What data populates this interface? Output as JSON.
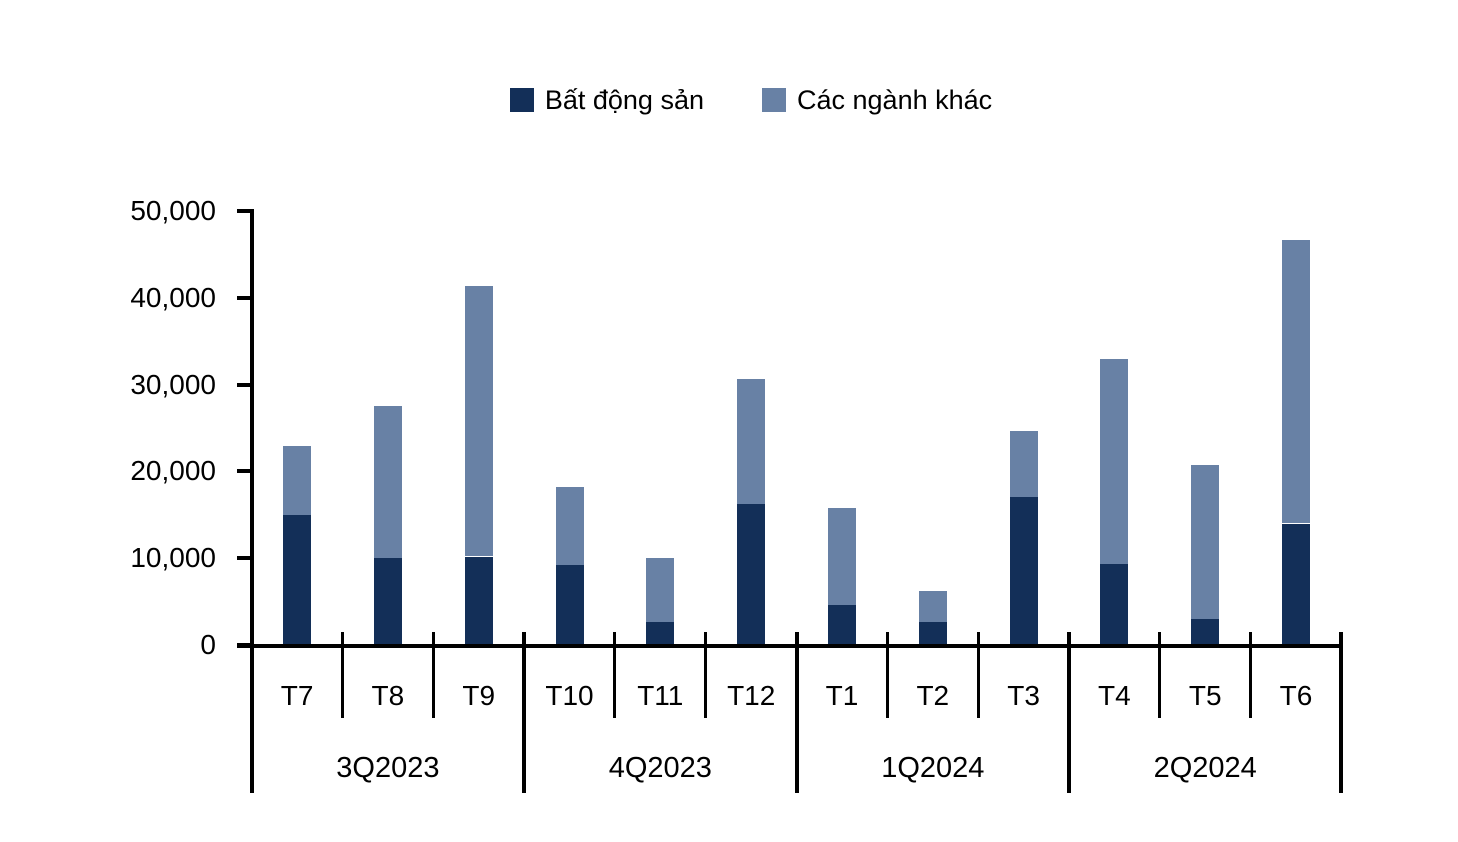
{
  "chart_data": {
    "type": "bar",
    "stacked": true,
    "title": "",
    "xlabel": "",
    "ylabel": "",
    "categories": [
      "T7",
      "T8",
      "T9",
      "T10",
      "T11",
      "T12",
      "T1",
      "T2",
      "T3",
      "T4",
      "T5",
      "T6"
    ],
    "quarters": [
      {
        "label": "3Q2023"
      },
      {
        "label": "4Q2023"
      },
      {
        "label": "1Q2024"
      },
      {
        "label": "2Q2024"
      }
    ],
    "series": [
      {
        "name": "Bất động sản",
        "color": "#132F58",
        "values": [
          15000,
          10000,
          10200,
          9200,
          2600,
          16200,
          4600,
          2600,
          17000,
          9300,
          3000,
          14000
        ]
      },
      {
        "name": "Các ngành khác",
        "color": "#6881A5",
        "values": [
          7900,
          17500,
          31200,
          9000,
          7400,
          14400,
          11200,
          3600,
          7700,
          23700,
          17700,
          32700
        ]
      }
    ],
    "totals": [
      22900,
      27500,
      41400,
      18200,
      10000,
      30600,
      15800,
      6200,
      24700,
      33000,
      20700,
      46700
    ],
    "ylim": [
      0,
      50000
    ],
    "ytick_step": 10000,
    "ytick_labels": [
      "0",
      "10,000",
      "20,000",
      "30,000",
      "40,000",
      "50,000"
    ],
    "legend_position": "top",
    "grid": false,
    "axis_color": "#000000"
  }
}
